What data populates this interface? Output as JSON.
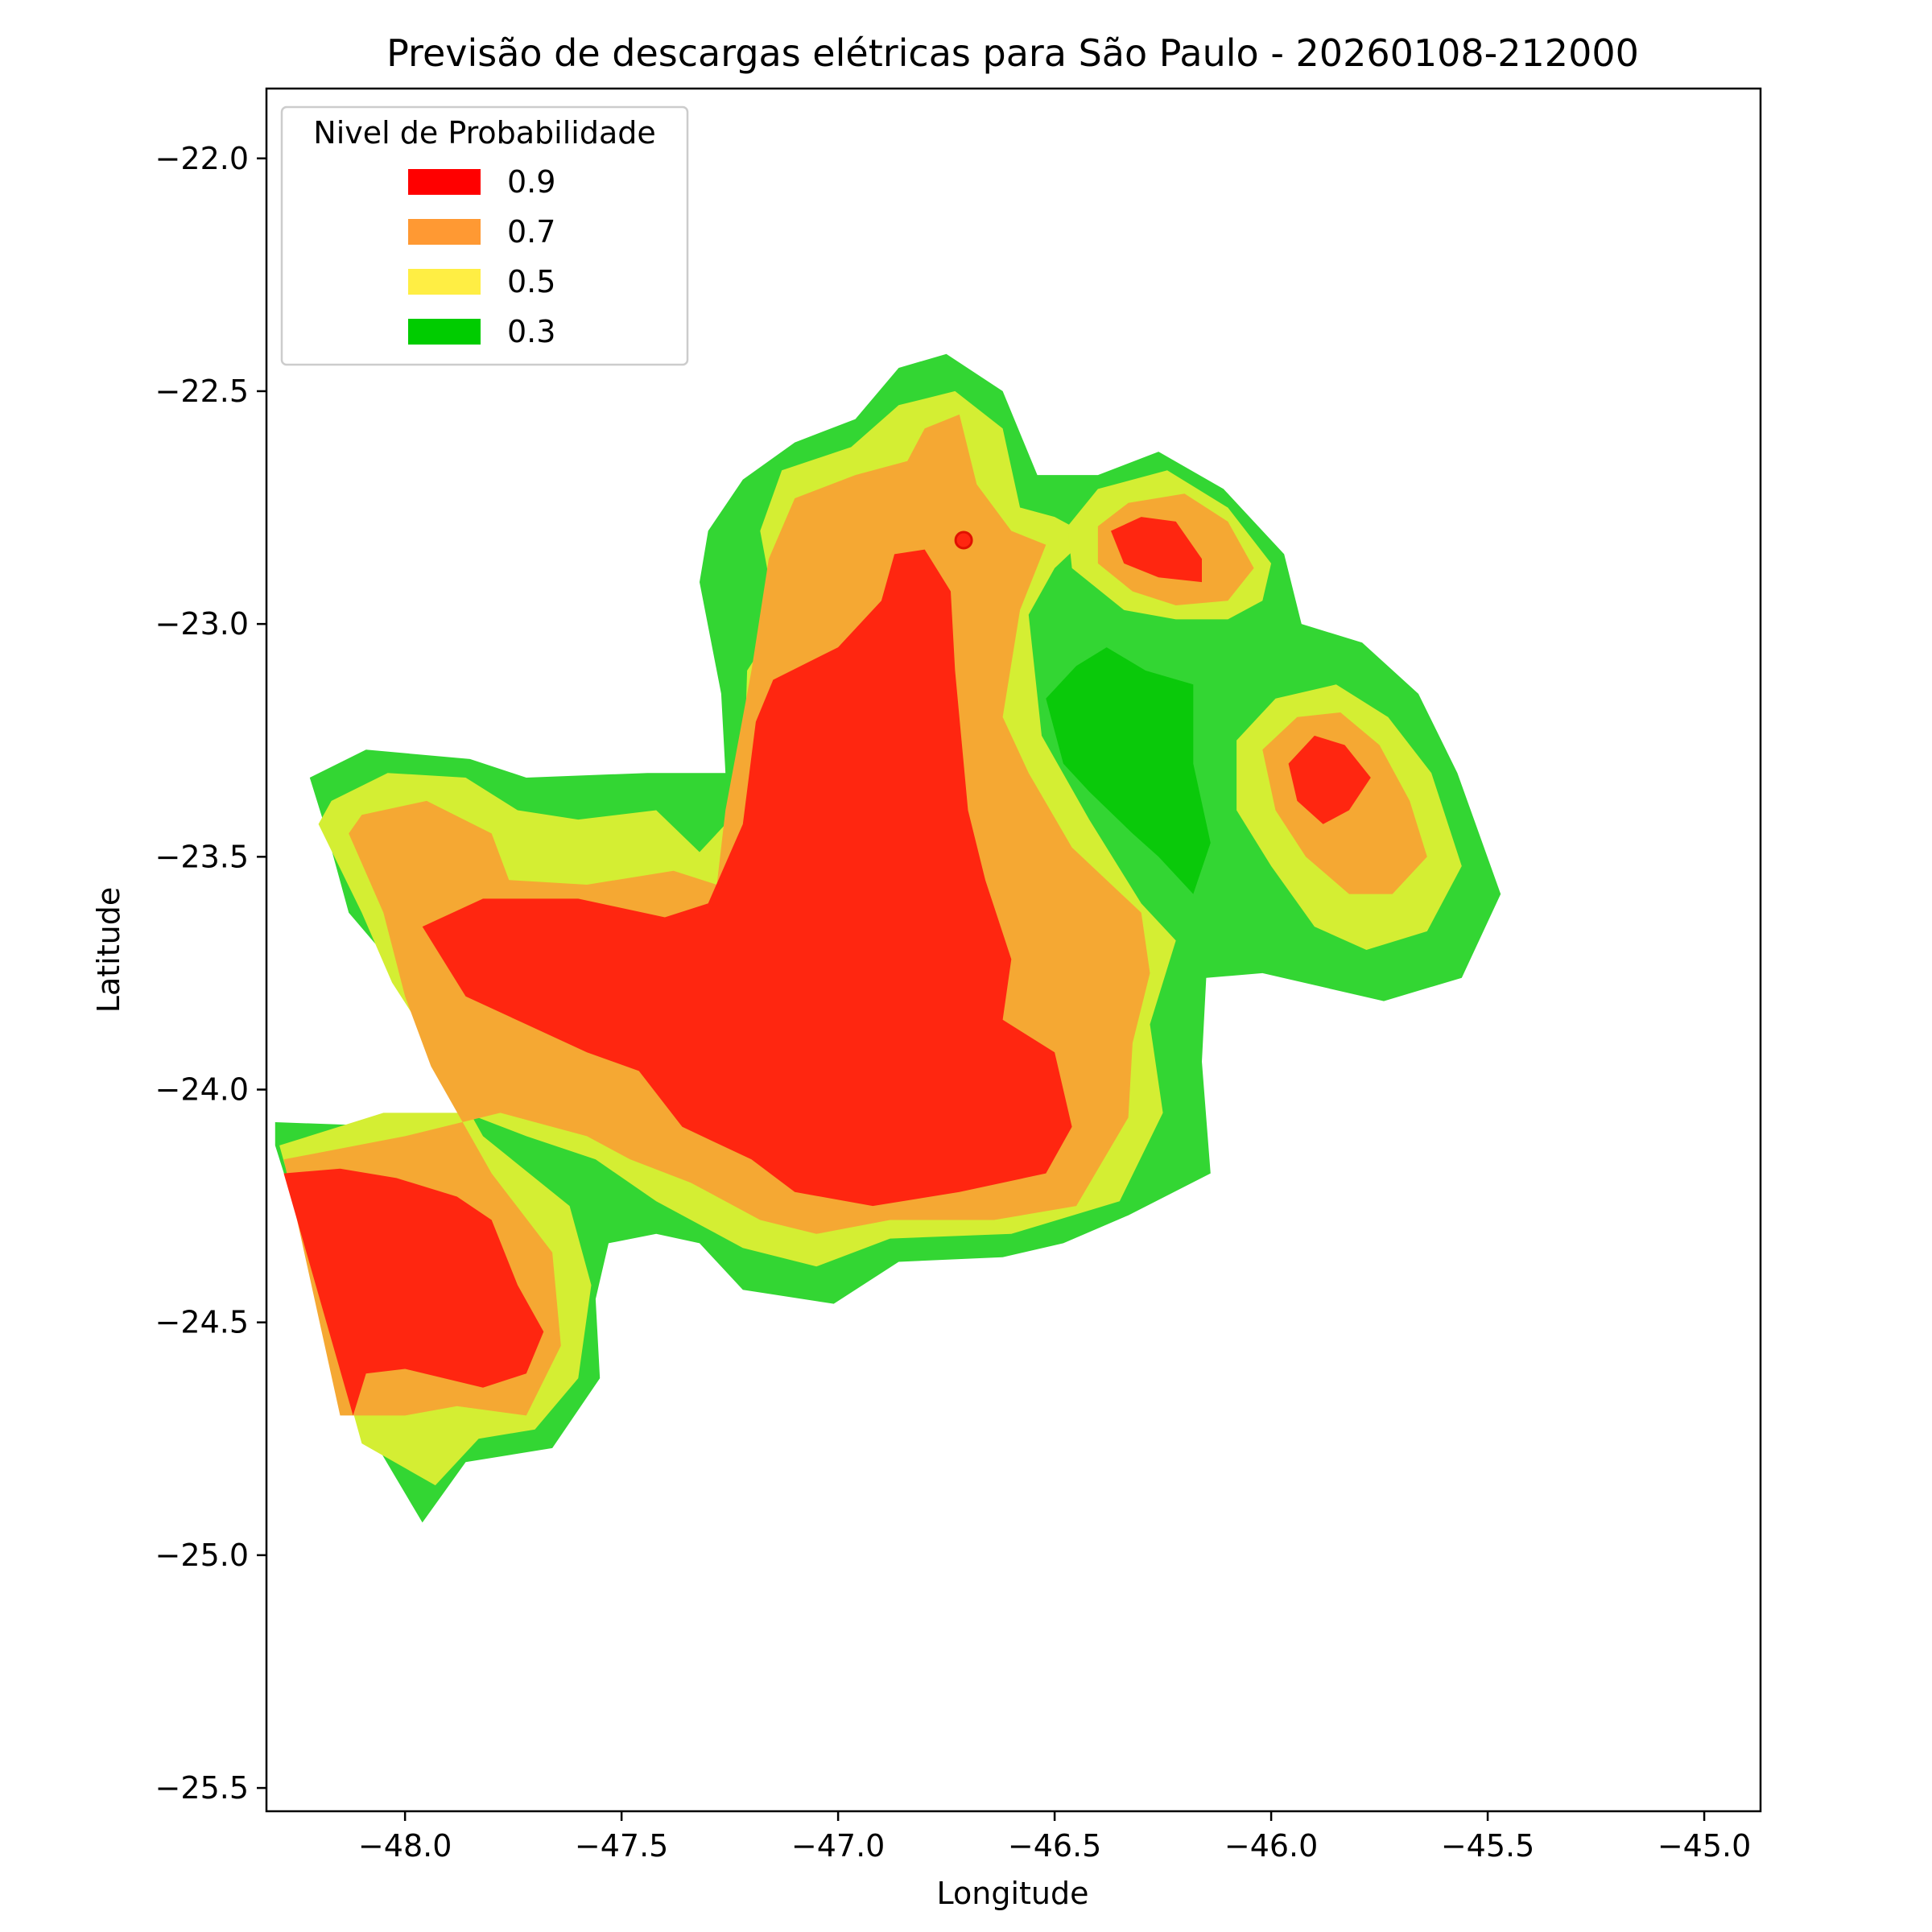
{
  "title": "Previsão de descargas elétricas para São Paulo - 20260108-212000",
  "chart_data": {
    "type": "contour-map",
    "xlabel": "Longitude",
    "ylabel": "Latitude",
    "xlim": [
      -48.32,
      -44.87
    ],
    "ylim": [
      -25.55,
      -21.85
    ],
    "x_ticks": [
      "−48.0",
      "−47.5",
      "−47.0",
      "−46.5",
      "−46.0",
      "−45.5",
      "−45.0"
    ],
    "x_tick_values": [
      -48.0,
      -47.5,
      -47.0,
      -46.5,
      -46.0,
      -45.5,
      -45.0
    ],
    "y_ticks": [
      "−22.0",
      "−22.5",
      "−23.0",
      "−23.5",
      "−24.0",
      "−24.5",
      "−25.0",
      "−25.5"
    ],
    "y_tick_values": [
      -22.0,
      -22.5,
      -23.0,
      -23.5,
      -24.0,
      -24.5,
      -25.0,
      -25.5
    ],
    "legend": {
      "title": "Nivel de Probabilidade",
      "placement": "upper-left",
      "entries": [
        {
          "label": "0.9",
          "color": "#ff0000"
        },
        {
          "label": "0.7",
          "color": "#ff9933"
        },
        {
          "label": "0.5",
          "color": "#ffee44"
        },
        {
          "label": "0.3",
          "color": "#00cc00"
        }
      ]
    },
    "level_colors": {
      "outer": "#33d633",
      "low": "#0ac90a",
      "mid": "#d4ee33",
      "orange": "#f5a833",
      "high": "#ff2610"
    },
    "marker": {
      "lon": -46.71,
      "lat": -22.82,
      "color": "#ff2610"
    },
    "regions": [
      {
        "name": "outer-main",
        "level": "outer",
        "polygon": [
          [
            -48.22,
            -23.33
          ],
          [
            -48.09,
            -23.27
          ],
          [
            -47.85,
            -23.29
          ],
          [
            -47.72,
            -23.33
          ],
          [
            -47.44,
            -23.32
          ],
          [
            -47.26,
            -23.32
          ],
          [
            -47.27,
            -23.15
          ],
          [
            -47.32,
            -22.91
          ],
          [
            -47.3,
            -22.8
          ],
          [
            -47.22,
            -22.69
          ],
          [
            -47.1,
            -22.61
          ],
          [
            -46.96,
            -22.56
          ],
          [
            -46.86,
            -22.45
          ],
          [
            -46.75,
            -22.42
          ],
          [
            -46.62,
            -22.5
          ],
          [
            -46.54,
            -22.68
          ],
          [
            -46.4,
            -22.68
          ],
          [
            -46.26,
            -22.63
          ],
          [
            -46.11,
            -22.71
          ],
          [
            -45.97,
            -22.85
          ],
          [
            -45.93,
            -23.0
          ],
          [
            -45.79,
            -23.04
          ],
          [
            -45.66,
            -23.15
          ],
          [
            -45.57,
            -23.32
          ],
          [
            -45.47,
            -23.58
          ],
          [
            -45.56,
            -23.76
          ],
          [
            -45.74,
            -23.81
          ],
          [
            -46.02,
            -23.75
          ],
          [
            -46.15,
            -23.76
          ],
          [
            -46.16,
            -23.94
          ],
          [
            -46.14,
            -24.18
          ],
          [
            -46.33,
            -24.27
          ],
          [
            -46.48,
            -24.33
          ],
          [
            -46.62,
            -24.36
          ],
          [
            -46.86,
            -24.37
          ],
          [
            -47.01,
            -24.46
          ],
          [
            -47.22,
            -24.43
          ],
          [
            -47.32,
            -24.33
          ],
          [
            -47.42,
            -24.31
          ],
          [
            -47.53,
            -24.33
          ],
          [
            -47.56,
            -24.45
          ],
          [
            -47.55,
            -24.62
          ],
          [
            -47.66,
            -24.77
          ],
          [
            -47.86,
            -24.8
          ],
          [
            -47.96,
            -24.93
          ],
          [
            -48.1,
            -24.71
          ],
          [
            -48.3,
            -24.12
          ],
          [
            -48.3,
            -24.07
          ],
          [
            -48.0,
            -24.08
          ],
          [
            -47.88,
            -24.1
          ],
          [
            -47.8,
            -23.97
          ],
          [
            -47.89,
            -23.85
          ],
          [
            -48.02,
            -23.74
          ],
          [
            -48.13,
            -23.62
          ],
          [
            -48.18,
            -23.45
          ]
        ]
      },
      {
        "name": "low-region",
        "level": "low",
        "polygon": [
          [
            -46.52,
            -23.16
          ],
          [
            -46.45,
            -23.09
          ],
          [
            -46.38,
            -23.05
          ],
          [
            -46.29,
            -23.1
          ],
          [
            -46.18,
            -23.13
          ],
          [
            -46.18,
            -23.3
          ],
          [
            -46.14,
            -23.47
          ],
          [
            -46.18,
            -23.58
          ],
          [
            -46.26,
            -23.5
          ],
          [
            -46.32,
            -23.45
          ],
          [
            -46.42,
            -23.36
          ],
          [
            -46.48,
            -23.3
          ]
        ]
      },
      {
        "name": "mid-main",
        "level": "mid",
        "polygon": [
          [
            -48.17,
            -23.38
          ],
          [
            -48.04,
            -23.32
          ],
          [
            -47.86,
            -23.33
          ],
          [
            -47.74,
            -23.4
          ],
          [
            -47.6,
            -23.42
          ],
          [
            -47.42,
            -23.4
          ],
          [
            -47.32,
            -23.49
          ],
          [
            -47.22,
            -23.39
          ],
          [
            -47.21,
            -23.1
          ],
          [
            -47.14,
            -23.0
          ],
          [
            -47.18,
            -22.8
          ],
          [
            -47.13,
            -22.67
          ],
          [
            -46.97,
            -22.62
          ],
          [
            -46.86,
            -22.53
          ],
          [
            -46.73,
            -22.5
          ],
          [
            -46.62,
            -22.58
          ],
          [
            -46.58,
            -22.75
          ],
          [
            -46.5,
            -22.77
          ],
          [
            -46.42,
            -22.81
          ],
          [
            -46.5,
            -22.88
          ],
          [
            -46.56,
            -22.98
          ],
          [
            -46.53,
            -23.24
          ],
          [
            -46.42,
            -23.42
          ],
          [
            -46.3,
            -23.6
          ],
          [
            -46.22,
            -23.68
          ],
          [
            -46.28,
            -23.86
          ],
          [
            -46.25,
            -24.05
          ],
          [
            -46.35,
            -24.24
          ],
          [
            -46.6,
            -24.31
          ],
          [
            -46.88,
            -24.32
          ],
          [
            -47.05,
            -24.38
          ],
          [
            -47.22,
            -24.34
          ],
          [
            -47.42,
            -24.24
          ],
          [
            -47.56,
            -24.15
          ],
          [
            -47.72,
            -24.1
          ],
          [
            -47.86,
            -24.05
          ],
          [
            -48.05,
            -24.05
          ],
          [
            -48.29,
            -24.12
          ],
          [
            -48.1,
            -24.76
          ],
          [
            -47.93,
            -24.85
          ],
          [
            -47.83,
            -24.75
          ],
          [
            -47.7,
            -24.73
          ],
          [
            -47.6,
            -24.62
          ],
          [
            -47.57,
            -24.42
          ],
          [
            -47.62,
            -24.25
          ],
          [
            -47.82,
            -24.1
          ],
          [
            -47.94,
            -23.9
          ],
          [
            -48.03,
            -23.77
          ],
          [
            -48.1,
            -23.62
          ],
          [
            -48.2,
            -23.43
          ]
        ]
      },
      {
        "name": "orange-main",
        "level": "orange",
        "polygon": [
          [
            -48.1,
            -23.41
          ],
          [
            -47.95,
            -23.38
          ],
          [
            -47.8,
            -23.45
          ],
          [
            -47.76,
            -23.55
          ],
          [
            -47.58,
            -23.56
          ],
          [
            -47.38,
            -23.53
          ],
          [
            -47.28,
            -23.56
          ],
          [
            -47.26,
            -23.4
          ],
          [
            -47.2,
            -23.1
          ],
          [
            -47.16,
            -22.86
          ],
          [
            -47.1,
            -22.73
          ],
          [
            -46.96,
            -22.68
          ],
          [
            -46.84,
            -22.65
          ],
          [
            -46.8,
            -22.58
          ],
          [
            -46.72,
            -22.55
          ],
          [
            -46.68,
            -22.7
          ],
          [
            -46.6,
            -22.8
          ],
          [
            -46.52,
            -22.83
          ],
          [
            -46.58,
            -22.97
          ],
          [
            -46.62,
            -23.2
          ],
          [
            -46.56,
            -23.32
          ],
          [
            -46.46,
            -23.48
          ],
          [
            -46.3,
            -23.62
          ],
          [
            -46.28,
            -23.75
          ],
          [
            -46.32,
            -23.9
          ],
          [
            -46.33,
            -24.06
          ],
          [
            -46.45,
            -24.25
          ],
          [
            -46.64,
            -24.28
          ],
          [
            -46.88,
            -24.28
          ],
          [
            -47.05,
            -24.31
          ],
          [
            -47.18,
            -24.28
          ],
          [
            -47.34,
            -24.2
          ],
          [
            -47.48,
            -24.15
          ],
          [
            -47.58,
            -24.1
          ],
          [
            -47.78,
            -24.05
          ],
          [
            -48.0,
            -24.1
          ],
          [
            -48.28,
            -24.15
          ],
          [
            -48.15,
            -24.7
          ],
          [
            -48.0,
            -24.7
          ],
          [
            -47.88,
            -24.68
          ],
          [
            -47.72,
            -24.7
          ],
          [
            -47.64,
            -24.55
          ],
          [
            -47.66,
            -24.35
          ],
          [
            -47.8,
            -24.18
          ],
          [
            -47.94,
            -23.95
          ],
          [
            -48.0,
            -23.8
          ],
          [
            -48.05,
            -23.62
          ],
          [
            -48.13,
            -23.45
          ]
        ]
      },
      {
        "name": "red-main",
        "level": "high",
        "polygon": [
          [
            -47.96,
            -23.65
          ],
          [
            -47.82,
            -23.59
          ],
          [
            -47.6,
            -23.59
          ],
          [
            -47.4,
            -23.63
          ],
          [
            -47.3,
            -23.6
          ],
          [
            -47.22,
            -23.43
          ],
          [
            -47.19,
            -23.21
          ],
          [
            -47.15,
            -23.12
          ],
          [
            -47.0,
            -23.05
          ],
          [
            -46.9,
            -22.95
          ],
          [
            -46.87,
            -22.85
          ],
          [
            -46.8,
            -22.84
          ],
          [
            -46.74,
            -22.93
          ],
          [
            -46.73,
            -23.1
          ],
          [
            -46.7,
            -23.4
          ],
          [
            -46.66,
            -23.55
          ],
          [
            -46.6,
            -23.72
          ],
          [
            -46.62,
            -23.85
          ],
          [
            -46.5,
            -23.92
          ],
          [
            -46.46,
            -24.08
          ],
          [
            -46.52,
            -24.18
          ],
          [
            -46.72,
            -24.22
          ],
          [
            -46.92,
            -24.25
          ],
          [
            -47.1,
            -24.22
          ],
          [
            -47.2,
            -24.15
          ],
          [
            -47.36,
            -24.08
          ],
          [
            -47.46,
            -23.96
          ],
          [
            -47.58,
            -23.92
          ],
          [
            -47.72,
            -23.86
          ],
          [
            -47.86,
            -23.8
          ]
        ]
      },
      {
        "name": "red-southwest",
        "level": "high",
        "polygon": [
          [
            -48.28,
            -24.18
          ],
          [
            -48.15,
            -24.17
          ],
          [
            -48.02,
            -24.19
          ],
          [
            -47.88,
            -24.23
          ],
          [
            -47.8,
            -24.28
          ],
          [
            -47.74,
            -24.42
          ],
          [
            -47.68,
            -24.52
          ],
          [
            -47.72,
            -24.61
          ],
          [
            -47.82,
            -24.64
          ],
          [
            -48.0,
            -24.6
          ],
          [
            -48.09,
            -24.61
          ],
          [
            -48.12,
            -24.7
          ]
        ]
      },
      {
        "name": "mid-northeast",
        "level": "mid",
        "polygon": [
          [
            -46.47,
            -22.79
          ],
          [
            -46.4,
            -22.71
          ],
          [
            -46.24,
            -22.67
          ],
          [
            -46.1,
            -22.75
          ],
          [
            -46.0,
            -22.87
          ],
          [
            -46.02,
            -22.95
          ],
          [
            -46.1,
            -22.99
          ],
          [
            -46.22,
            -22.99
          ],
          [
            -46.34,
            -22.97
          ],
          [
            -46.46,
            -22.88
          ]
        ]
      },
      {
        "name": "orange-northeast",
        "level": "orange",
        "polygon": [
          [
            -46.4,
            -22.79
          ],
          [
            -46.33,
            -22.74
          ],
          [
            -46.2,
            -22.72
          ],
          [
            -46.1,
            -22.78
          ],
          [
            -46.04,
            -22.88
          ],
          [
            -46.1,
            -22.95
          ],
          [
            -46.22,
            -22.96
          ],
          [
            -46.32,
            -22.93
          ],
          [
            -46.4,
            -22.87
          ]
        ]
      },
      {
        "name": "red-northeast",
        "level": "high",
        "polygon": [
          [
            -46.37,
            -22.8
          ],
          [
            -46.3,
            -22.77
          ],
          [
            -46.22,
            -22.78
          ],
          [
            -46.16,
            -22.86
          ],
          [
            -46.16,
            -22.91
          ],
          [
            -46.26,
            -22.9
          ],
          [
            -46.34,
            -22.87
          ]
        ]
      },
      {
        "name": "mid-east",
        "level": "mid",
        "polygon": [
          [
            -46.08,
            -23.25
          ],
          [
            -45.99,
            -23.16
          ],
          [
            -45.85,
            -23.13
          ],
          [
            -45.73,
            -23.2
          ],
          [
            -45.63,
            -23.32
          ],
          [
            -45.56,
            -23.52
          ],
          [
            -45.64,
            -23.66
          ],
          [
            -45.78,
            -23.7
          ],
          [
            -45.9,
            -23.65
          ],
          [
            -46.0,
            -23.52
          ],
          [
            -46.08,
            -23.4
          ]
        ]
      },
      {
        "name": "orange-east",
        "level": "orange",
        "polygon": [
          [
            -46.02,
            -23.27
          ],
          [
            -45.94,
            -23.2
          ],
          [
            -45.84,
            -23.19
          ],
          [
            -45.75,
            -23.26
          ],
          [
            -45.68,
            -23.38
          ],
          [
            -45.64,
            -23.5
          ],
          [
            -45.72,
            -23.58
          ],
          [
            -45.82,
            -23.58
          ],
          [
            -45.92,
            -23.5
          ],
          [
            -45.99,
            -23.4
          ]
        ]
      },
      {
        "name": "red-east",
        "level": "high",
        "polygon": [
          [
            -45.96,
            -23.3
          ],
          [
            -45.9,
            -23.24
          ],
          [
            -45.83,
            -23.26
          ],
          [
            -45.77,
            -23.33
          ],
          [
            -45.82,
            -23.4
          ],
          [
            -45.88,
            -23.43
          ],
          [
            -45.94,
            -23.38
          ]
        ]
      }
    ]
  }
}
